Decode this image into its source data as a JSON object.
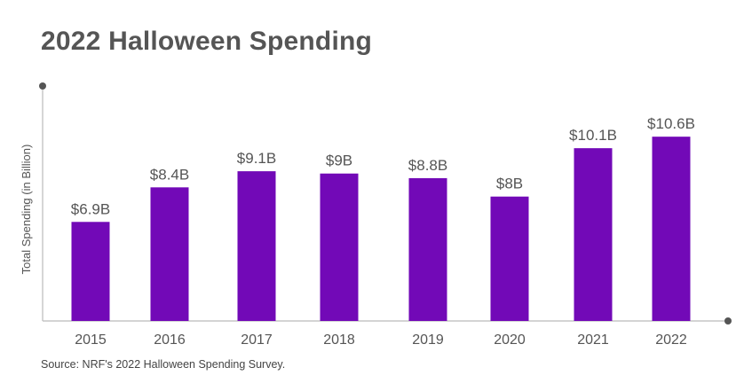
{
  "title": "2022 Halloween Spending",
  "source": "Source: NRF's 2022 Halloween Spending Survey.",
  "colors": {
    "bar": "#7209b7",
    "axis": "#bbbbbb",
    "axis_dot": "#555555",
    "text": "#555555"
  },
  "chart_data": {
    "type": "bar",
    "title": "2022 Halloween Spending",
    "xlabel": "",
    "ylabel": "Total Spending (in Billion)",
    "categories": [
      "2015",
      "2016",
      "2017",
      "2018",
      "2019",
      "2020",
      "2021",
      "2022"
    ],
    "values": [
      6.9,
      8.4,
      9.1,
      9.0,
      8.8,
      8.0,
      10.1,
      10.6
    ],
    "data_labels": [
      "$6.9B",
      "$8.4B",
      "$9.1B",
      "$9B",
      "$8.8B",
      "$8B",
      "$10.1B",
      "$10.6B"
    ],
    "ylim": [
      2.6,
      12.8
    ],
    "grid": false,
    "legend": "none"
  }
}
